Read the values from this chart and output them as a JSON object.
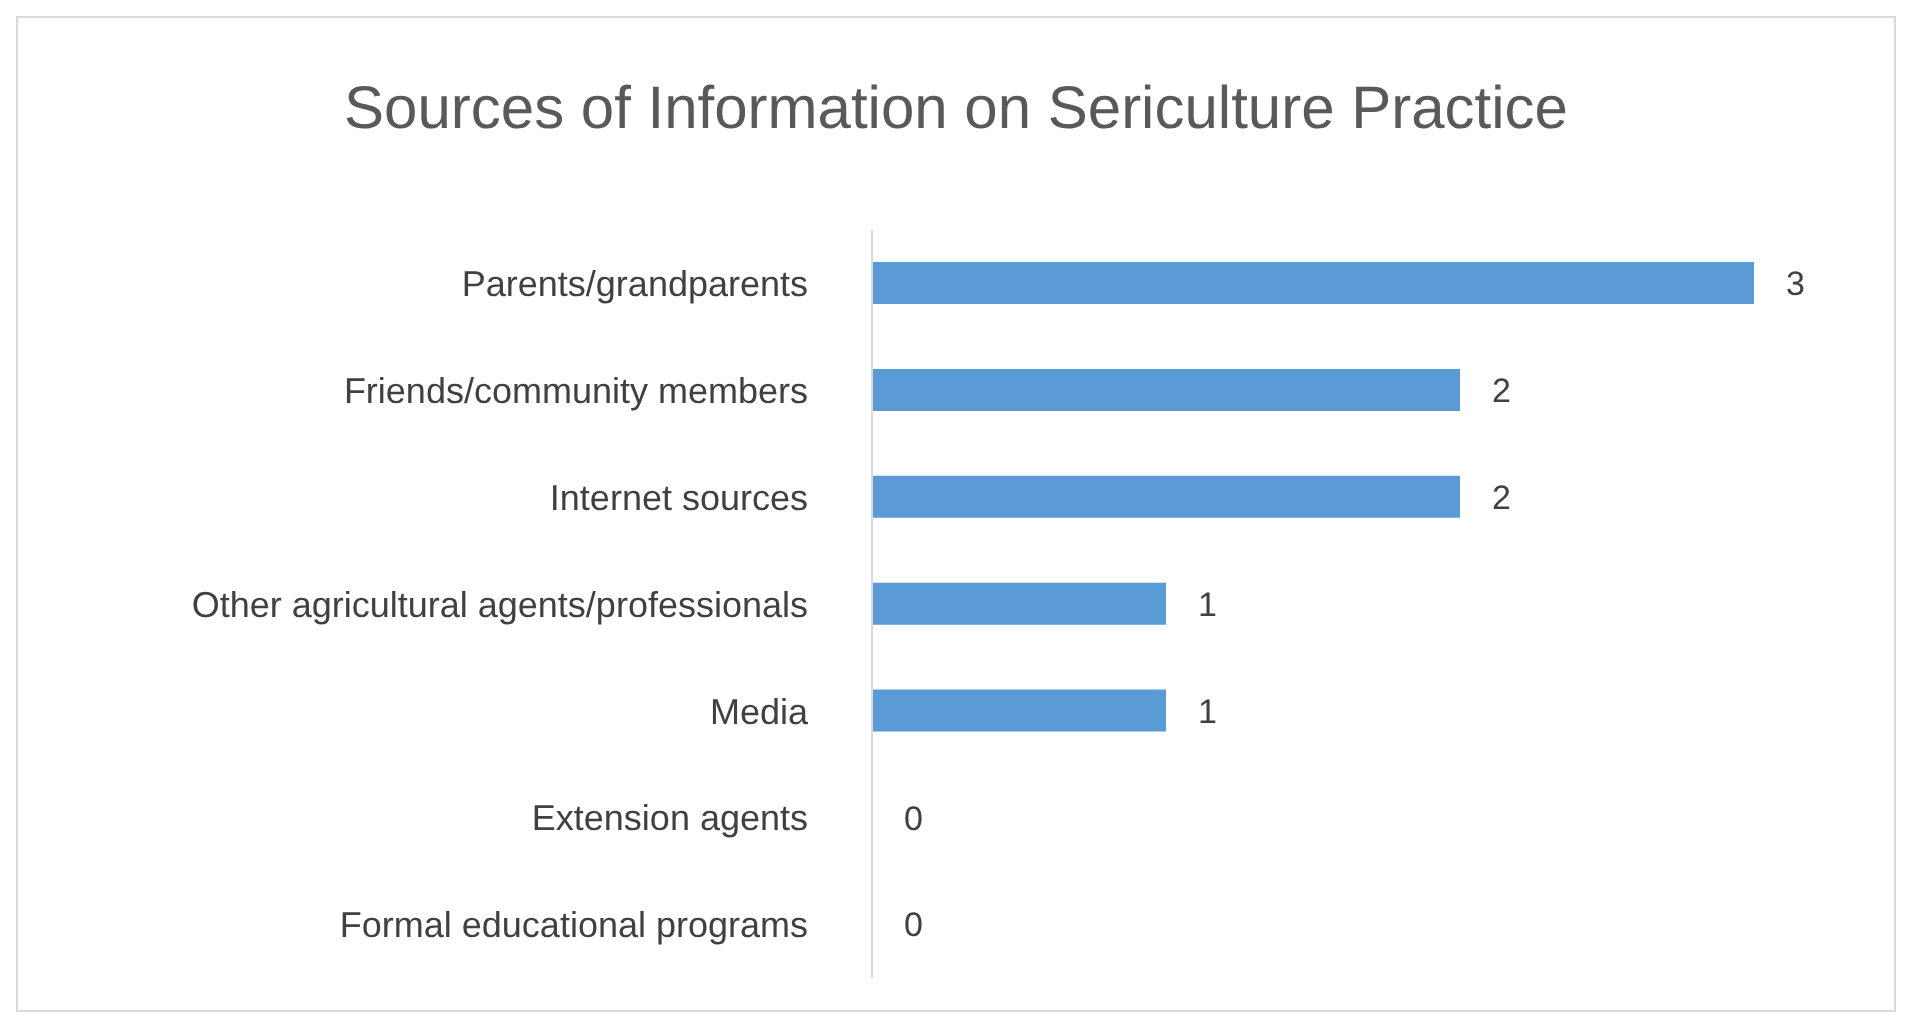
{
  "chart_data": {
    "type": "bar",
    "orientation": "horizontal",
    "title": "Sources of Information on Sericulture Practice",
    "categories": [
      "Parents/grandparents",
      "Friends/community members",
      "Internet sources",
      "Other agricultural agents/professionals",
      "Media",
      "Extension agents",
      "Formal educational programs"
    ],
    "values": [
      3,
      2,
      2,
      1,
      1,
      0,
      0
    ],
    "color": "#5b9bd5",
    "data_labels": true
  }
}
